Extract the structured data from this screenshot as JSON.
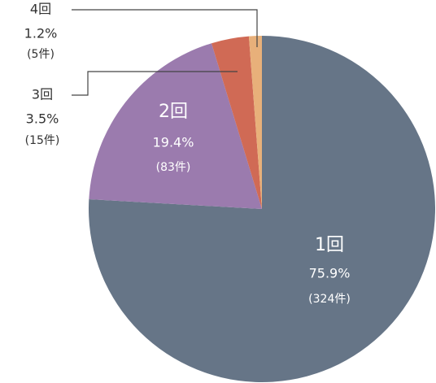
{
  "chart_data": {
    "type": "pie",
    "categories": [
      "1回",
      "2回",
      "3回",
      "4回"
    ],
    "values": [
      75.9,
      19.4,
      3.5,
      1.2
    ],
    "value_labels": [
      "75.9%",
      "19.4%",
      "3.5%",
      "1.2%"
    ],
    "count_labels": [
      "(324件)",
      "(83件)",
      "(15件)",
      "(5件)"
    ],
    "colors": [
      "#667587",
      "#9b7bae",
      "#d06a55",
      "#e8b07a"
    ]
  }
}
